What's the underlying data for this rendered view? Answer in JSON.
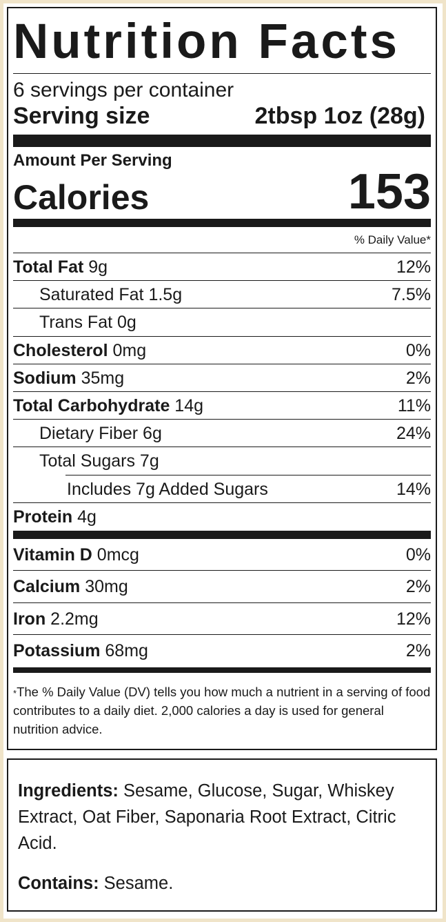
{
  "title": "Nutrition Facts",
  "servings_per_container": "6 servings per container",
  "serving_size": {
    "label": "Serving size",
    "value": "2tbsp 1oz (28g)"
  },
  "amount_per_serving": "Amount Per Serving",
  "calories": {
    "label": "Calories",
    "value": "153"
  },
  "daily_value_header": "% Daily Value*",
  "nutrients": [
    {
      "name": "Total Fat",
      "amount": "9g",
      "dv": "12%"
    },
    {
      "name": "Saturated Fat",
      "amount": "1.5g",
      "dv": "7.5%"
    },
    {
      "name": "Trans Fat",
      "amount": "0g",
      "dv": ""
    },
    {
      "name": "Cholesterol",
      "amount": "0mg",
      "dv": "0%"
    },
    {
      "name": "Sodium",
      "amount": "35mg",
      "dv": "2%"
    },
    {
      "name": "Total Carbohydrate",
      "amount": "14g",
      "dv": "11%"
    },
    {
      "name": "Dietary Fiber",
      "amount": "6g",
      "dv": "24%"
    },
    {
      "name": "Total Sugars",
      "amount": "7g",
      "dv": ""
    },
    {
      "name": "Includes 7g Added Sugars",
      "amount": "",
      "dv": "14%"
    },
    {
      "name": "Protein",
      "amount": "4g",
      "dv": ""
    }
  ],
  "vitamins": [
    {
      "name": "Vitamin D",
      "amount": "0mcg",
      "dv": "0%"
    },
    {
      "name": "Calcium",
      "amount": "30mg",
      "dv": "2%"
    },
    {
      "name": "Iron",
      "amount": "2.2mg",
      "dv": "12%"
    },
    {
      "name": "Potassium",
      "amount": "68mg",
      "dv": "2%"
    }
  ],
  "footnote": {
    "star": "*",
    "text": "The % Daily Value (DV) tells you how much a nutrient in a serving of food contributes to a daily diet. 2,000 calories a day is used for general nutrition advice."
  },
  "ingredients": {
    "label": "Ingredients:",
    "text": "Sesame, Glucose, Sugar, Whiskey Extract, Oat Fiber, Saponaria Root Extract, Citric Acid."
  },
  "contains": {
    "label": "Contains:",
    "text": "Sesame."
  },
  "colors": {
    "background": "#f0e4c9",
    "ink": "#1a1a1a",
    "panel": "#ffffff"
  }
}
